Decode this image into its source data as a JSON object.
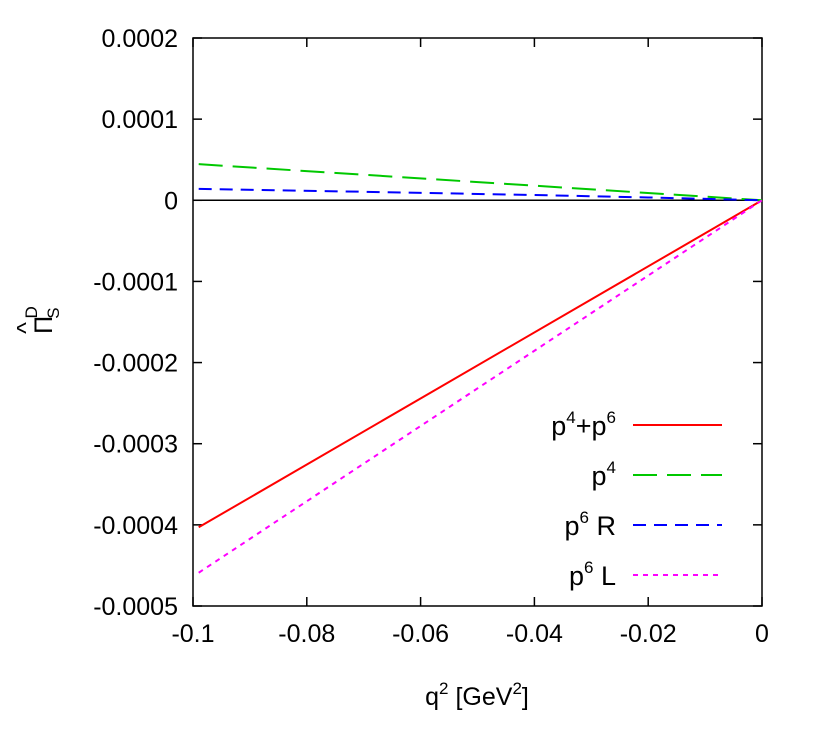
{
  "chart_data": {
    "type": "line",
    "xlabel": {
      "base": "q",
      "sup": "2",
      "unit_prefix": " [GeV",
      "unit_sup": "2",
      "unit_suffix": "]"
    },
    "ylabel": {
      "accent": "^",
      "base": "Π",
      "sub": "S",
      "sup": "D"
    },
    "xlim": [
      -0.1,
      0
    ],
    "ylim": [
      -0.0005,
      0.0002
    ],
    "x_ticks": [
      -0.1,
      -0.08,
      -0.06,
      -0.04,
      -0.02,
      0
    ],
    "x_tick_labels": [
      "-0.1",
      "-0.08",
      "-0.06",
      "-0.04",
      "-0.02",
      "0"
    ],
    "y_ticks": [
      0.0002,
      0.0001,
      0,
      -0.0001,
      -0.0002,
      -0.0003,
      -0.0004,
      -0.0005
    ],
    "y_tick_labels": [
      "0.0002",
      "0.0001",
      "0",
      "-0.0001",
      "-0.0002",
      "-0.0003",
      "-0.0004",
      "-0.0005"
    ],
    "zero_line": true,
    "grid": false,
    "legend_position": "bottom-right",
    "series": [
      {
        "legend": {
          "base": "p",
          "sup": "4",
          "mid": "+p",
          "sup2": "6",
          "suffix": ""
        },
        "color": "#ff0000",
        "dash": "solid",
        "x": [
          -0.099,
          0
        ],
        "y": [
          -0.000403,
          0
        ]
      },
      {
        "legend": {
          "base": "p",
          "sup": "4",
          "mid": "",
          "sup2": "",
          "suffix": ""
        },
        "color": "#00c800",
        "dash": "long",
        "x": [
          -0.099,
          0
        ],
        "y": [
          4.45e-05,
          0
        ]
      },
      {
        "legend": {
          "base": "p",
          "sup": "6",
          "mid": "",
          "sup2": "",
          "suffix": " R"
        },
        "color": "#0000ff",
        "dash": "medium",
        "x": [
          -0.099,
          -0.07,
          -0.04,
          -0.02,
          0
        ],
        "y": [
          1.4e-05,
          1.05e-05,
          6.5e-06,
          3.5e-06,
          0
        ]
      },
      {
        "legend": {
          "base": "p",
          "sup": "6",
          "mid": "",
          "sup2": "",
          "suffix": " L"
        },
        "color": "#ff00ff",
        "dash": "short",
        "x": [
          -0.099,
          0
        ],
        "y": [
          -0.000459,
          0
        ]
      }
    ]
  }
}
